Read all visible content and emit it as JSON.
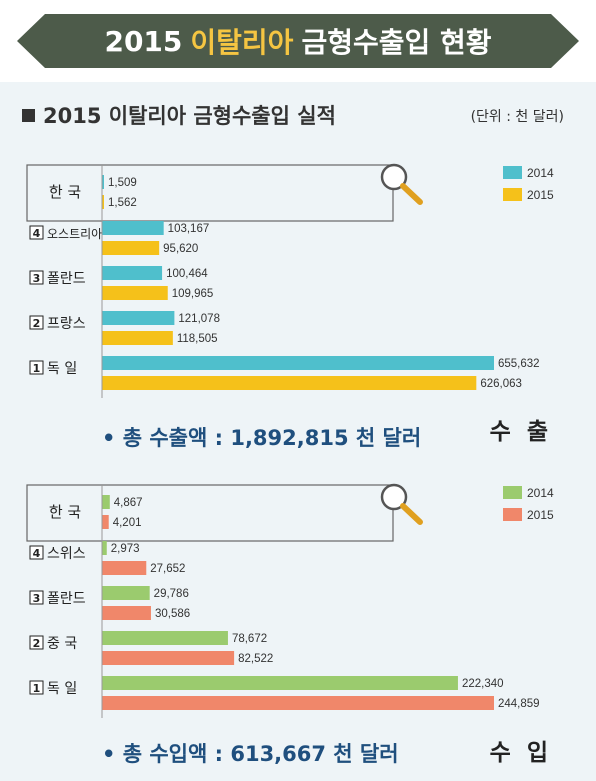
{
  "header": {
    "title_year": "2015",
    "title_country": "이탈리아",
    "title_rest": "금형수출입 현황"
  },
  "subtitle": "2015 이탈리아 금형수출입 실적",
  "unit": "(단위 : 천 달러)",
  "colors": {
    "export_2014": "#4fbfcc",
    "export_2015": "#f5c11a",
    "import_2014": "#9bcb6e",
    "import_2015": "#f0876a"
  },
  "chart_data": [
    {
      "type": "bar",
      "orientation": "horizontal",
      "section_label": "수 출",
      "total": "• 총 수출액 : 1,892,815 천 달러",
      "categories": [
        {
          "label": "한 국",
          "rank": "",
          "highlight": true
        },
        {
          "label": "오스트리아",
          "rank": "4",
          "highlight": false
        },
        {
          "label": "폴란드",
          "rank": "3",
          "highlight": false
        },
        {
          "label": "프랑스",
          "rank": "2",
          "highlight": false
        },
        {
          "label": "독 일",
          "rank": "1",
          "highlight": false
        }
      ],
      "series": [
        {
          "name": "2014",
          "values": [
            1509,
            103167,
            100464,
            121078,
            655632
          ],
          "labels": [
            "1,509",
            "103,167",
            "100,464",
            "121,078",
            "655,632"
          ]
        },
        {
          "name": "2015",
          "values": [
            1562,
            95620,
            109965,
            118505,
            626063
          ],
          "labels": [
            "1,562",
            "95,620",
            "109,965",
            "118,505",
            "626,063"
          ]
        }
      ]
    },
    {
      "type": "bar",
      "orientation": "horizontal",
      "section_label": "수 입",
      "total": "• 총 수입액 : 613,667 천 달러",
      "categories": [
        {
          "label": "한 국",
          "rank": "",
          "highlight": true
        },
        {
          "label": "스위스",
          "rank": "4",
          "highlight": false
        },
        {
          "label": "폴란드",
          "rank": "3",
          "highlight": false
        },
        {
          "label": "중 국",
          "rank": "2",
          "highlight": false
        },
        {
          "label": "독 일",
          "rank": "1",
          "highlight": false
        }
      ],
      "series": [
        {
          "name": "2014",
          "values": [
            4867,
            2973,
            29786,
            78672,
            222340
          ],
          "labels": [
            "4,867",
            "2,973",
            "29,786",
            "78,672",
            "222,340"
          ]
        },
        {
          "name": "2015",
          "values": [
            4201,
            27652,
            30586,
            82522,
            244859
          ],
          "labels": [
            "4,201",
            "27,652",
            "30,586",
            "82,522",
            "244,859"
          ]
        }
      ]
    }
  ]
}
